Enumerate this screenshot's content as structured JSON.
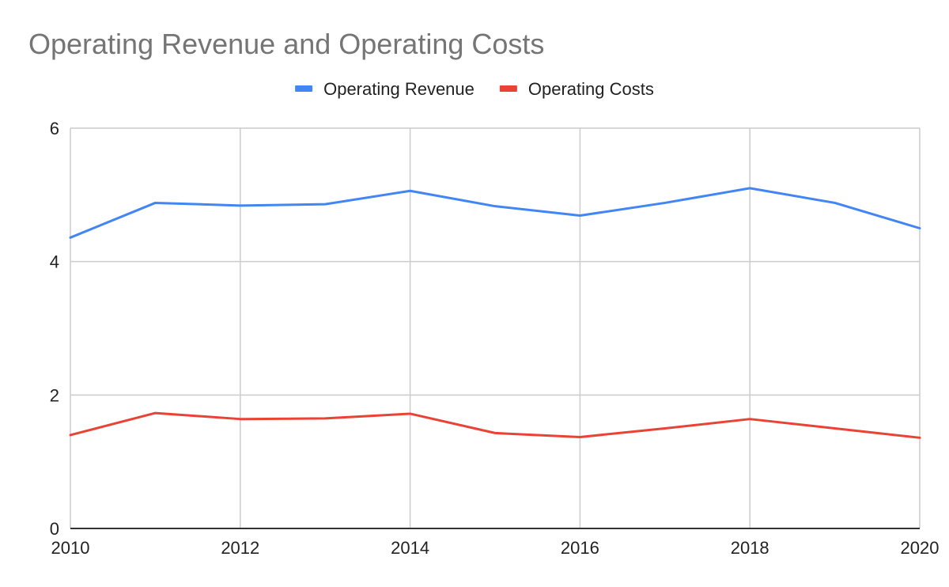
{
  "chart_data": {
    "type": "line",
    "title": "Operating Revenue and Operating Costs",
    "xlabel": "",
    "ylabel": "",
    "x": [
      2010,
      2011,
      2012,
      2013,
      2014,
      2015,
      2016,
      2017,
      2018,
      2019,
      2020
    ],
    "xlim": [
      2010,
      2020
    ],
    "ylim": [
      0,
      6
    ],
    "x_ticks": [
      2010,
      2012,
      2014,
      2016,
      2018,
      2020
    ],
    "y_ticks": [
      0,
      2,
      4,
      6
    ],
    "grid": true,
    "legend_position": "top-center",
    "series": [
      {
        "name": "Operating Revenue",
        "color": "#4285f4",
        "values": [
          4.36,
          4.88,
          4.84,
          4.86,
          5.06,
          4.83,
          4.69,
          4.88,
          5.1,
          4.88,
          4.5
        ]
      },
      {
        "name": "Operating Costs",
        "color": "#ea4335",
        "values": [
          1.4,
          1.73,
          1.64,
          1.65,
          1.72,
          1.43,
          1.37,
          1.5,
          1.64,
          1.5,
          1.36
        ]
      }
    ]
  }
}
